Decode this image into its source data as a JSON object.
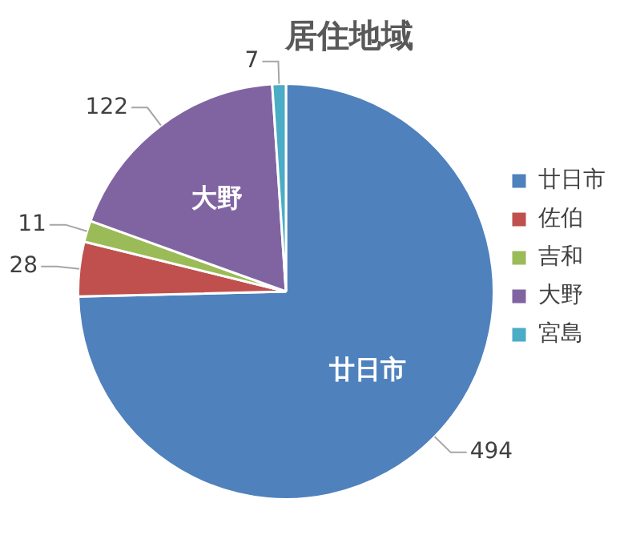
{
  "chart_data": {
    "type": "pie",
    "title": "居住地域",
    "categories": [
      "廿日市",
      "佐伯",
      "吉和",
      "大野",
      "宮島"
    ],
    "values": [
      494,
      28,
      11,
      122,
      7
    ],
    "colors": [
      "#4f81bd",
      "#c0504d",
      "#9bbb59",
      "#8064a2",
      "#4bacc6"
    ],
    "data_labels": true,
    "legend": "right",
    "annotations": [
      {
        "text": "廿日市",
        "x": "廿日市"
      },
      {
        "text": "大野",
        "x": "大野"
      }
    ]
  }
}
